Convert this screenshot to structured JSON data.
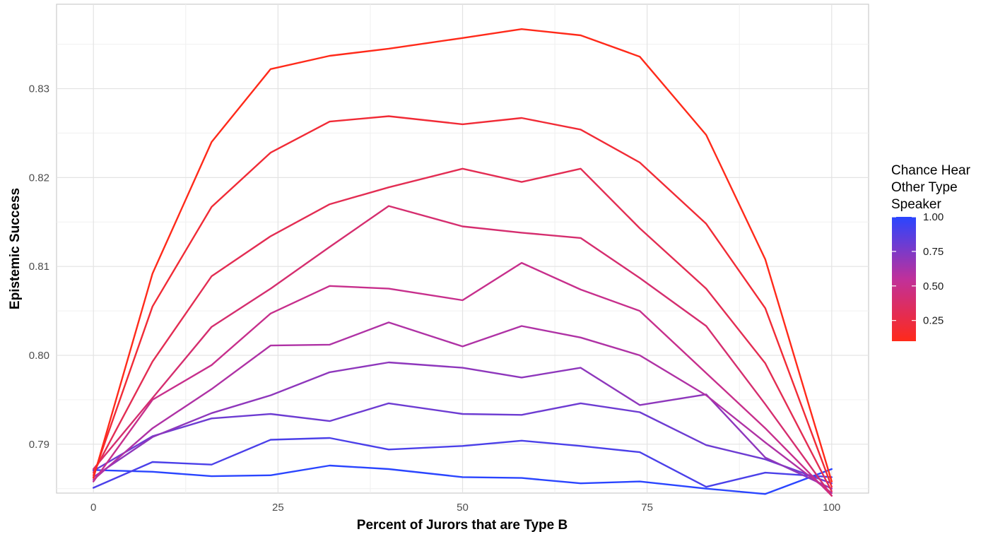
{
  "chart_data": {
    "type": "line",
    "title": "",
    "xlabel": "Percent of Jurors that are Type B",
    "ylabel": "Epistemic Success",
    "xlim": [
      -5,
      105
    ],
    "ylim": [
      0.7845,
      0.8395
    ],
    "x_ticks": [
      0,
      25,
      50,
      75,
      100
    ],
    "x_tick_labels": [
      "0",
      "25",
      "50",
      "75",
      "100"
    ],
    "y_ticks": [
      0.79,
      0.8,
      0.81,
      0.82,
      0.83
    ],
    "y_tick_labels": [
      "0.79",
      "0.80",
      "0.81",
      "0.82",
      "0.83"
    ],
    "grid": true,
    "legend": {
      "title_lines": [
        "Chance Hear",
        "Other Type",
        "Speaker"
      ],
      "placement": "right",
      "type": "colorbar",
      "range": [
        0.1,
        1.0
      ],
      "ticks": [
        1.0,
        0.75,
        0.5,
        0.25
      ],
      "tick_labels": [
        "1.00",
        "0.75",
        "0.50",
        "0.25"
      ],
      "low_color": "#ff2a1a",
      "high_color": "#2a45ff"
    },
    "x": [
      0,
      8,
      16,
      24,
      32,
      40,
      50,
      58,
      66,
      74,
      83,
      91,
      100
    ],
    "series": [
      {
        "level": 0.1,
        "values": [
          0.7862,
          0.8092,
          0.824,
          0.8322,
          0.8337,
          0.8345,
          0.8357,
          0.8367,
          0.836,
          0.8336,
          0.8248,
          0.8108,
          0.7858
        ]
      },
      {
        "level": 0.2,
        "values": [
          0.7865,
          0.8055,
          0.8167,
          0.8228,
          0.8263,
          0.8269,
          0.826,
          0.8267,
          0.8254,
          0.8217,
          0.8148,
          0.8053,
          0.7852
        ]
      },
      {
        "level": 0.3,
        "values": [
          0.7868,
          0.7993,
          0.8089,
          0.8134,
          0.817,
          0.8189,
          0.821,
          0.8195,
          0.821,
          0.8143,
          0.8075,
          0.7991,
          0.7847
        ]
      },
      {
        "level": 0.4,
        "values": [
          0.7872,
          0.7952,
          0.8032,
          0.8075,
          0.8122,
          0.8168,
          0.8145,
          0.8138,
          0.8132,
          0.8087,
          0.8033,
          0.7945,
          0.7842
        ]
      },
      {
        "level": 0.5,
        "values": [
          0.7858,
          0.795,
          0.7989,
          0.8047,
          0.8078,
          0.8075,
          0.8062,
          0.8104,
          0.8074,
          0.805,
          0.798,
          0.7918,
          0.7842
        ]
      },
      {
        "level": 0.6,
        "values": [
          0.786,
          0.7918,
          0.7962,
          0.8011,
          0.8012,
          0.8037,
          0.801,
          0.8033,
          0.802,
          0.8,
          0.7955,
          0.7902,
          0.7845
        ]
      },
      {
        "level": 0.7,
        "values": [
          0.7863,
          0.7908,
          0.7935,
          0.7955,
          0.7981,
          0.7992,
          0.7986,
          0.7975,
          0.7986,
          0.7944,
          0.7956,
          0.7885,
          0.785
        ]
      },
      {
        "level": 0.8,
        "values": [
          0.787,
          0.7909,
          0.7929,
          0.7934,
          0.7926,
          0.7946,
          0.7934,
          0.7933,
          0.7946,
          0.7936,
          0.7899,
          0.7883,
          0.7856
        ]
      },
      {
        "level": 0.9,
        "values": [
          0.7851,
          0.788,
          0.7877,
          0.7905,
          0.7907,
          0.7894,
          0.7898,
          0.7904,
          0.7898,
          0.7891,
          0.7852,
          0.7868,
          0.7863
        ]
      },
      {
        "level": 1.0,
        "values": [
          0.7871,
          0.7869,
          0.7864,
          0.7865,
          0.7876,
          0.7872,
          0.7863,
          0.7862,
          0.7856,
          0.7858,
          0.785,
          0.7844,
          0.7872
        ]
      }
    ]
  }
}
